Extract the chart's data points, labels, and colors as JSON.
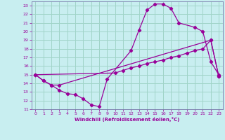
{
  "xlabel": "Windchill (Refroidissement éolien,°C)",
  "background_color": "#c8eef0",
  "grid_color": "#a0d4c8",
  "line_color": "#990099",
  "spine_color": "#7777aa",
  "xlim": [
    -0.5,
    23.5
  ],
  "ylim": [
    11,
    23.5
  ],
  "xticks": [
    0,
    1,
    2,
    3,
    4,
    5,
    6,
    7,
    8,
    9,
    10,
    11,
    12,
    13,
    14,
    15,
    16,
    17,
    18,
    19,
    20,
    21,
    22,
    23
  ],
  "yticks": [
    11,
    12,
    13,
    14,
    15,
    16,
    17,
    18,
    19,
    20,
    21,
    22,
    23
  ],
  "line1_x": [
    0,
    1,
    2,
    3,
    4,
    5,
    6,
    7,
    8,
    9,
    12,
    13,
    14,
    15,
    16,
    17,
    18,
    20,
    21,
    22,
    23
  ],
  "line1_y": [
    15.0,
    14.3,
    13.8,
    13.2,
    12.8,
    12.7,
    12.2,
    11.5,
    11.3,
    14.5,
    17.8,
    20.2,
    22.5,
    23.2,
    23.2,
    22.7,
    21.0,
    20.5,
    20.0,
    16.5,
    15.0
  ],
  "line2_x": [
    0,
    1,
    2,
    3,
    22,
    23
  ],
  "line2_y": [
    15.0,
    14.3,
    13.8,
    13.8,
    19.0,
    14.8
  ],
  "line3_x": [
    0,
    10,
    11,
    12,
    13,
    14,
    15,
    16,
    17,
    18,
    19,
    20,
    21,
    22,
    23
  ],
  "line3_y": [
    15.0,
    15.2,
    15.5,
    15.8,
    16.0,
    16.3,
    16.5,
    16.7,
    17.0,
    17.2,
    17.5,
    17.8,
    18.0,
    19.0,
    14.8
  ]
}
